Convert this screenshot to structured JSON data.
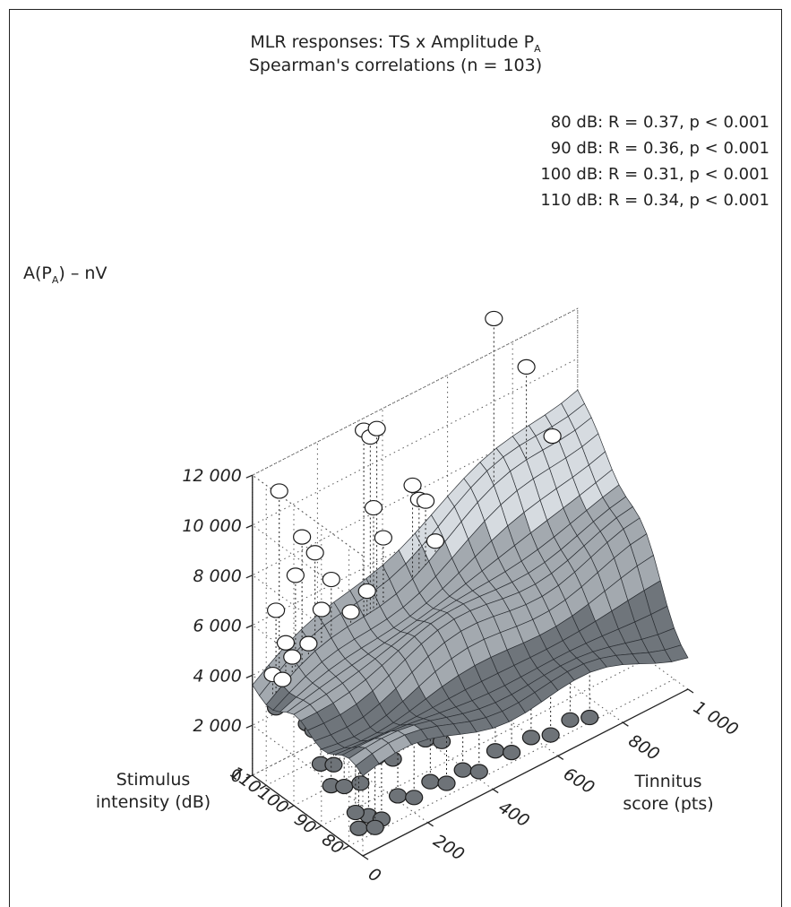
{
  "chart_data": {
    "type": "surface",
    "title": "MLR responses: TS x Amplitude P",
    "title_subscript": "A",
    "subtitle": "Spearman's correlations (n = 103)",
    "annotations": [
      "80 dB: R = 0.37, p < 0.001",
      "90 dB: R = 0.36, p < 0.001",
      "100 dB: R = 0.31, p < 0.001",
      "110 dB: R = 0.34, p < 0.001"
    ],
    "zlabel_main": "A(P",
    "zlabel_sub": "A",
    "zlabel_tail": ") – nV",
    "xlabel_line1": "Tinnitus",
    "xlabel_line2": "score (pts)",
    "ylabel_line1": "Stimulus",
    "ylabel_line2": "intensity (dB)",
    "x_ticks": [
      "0",
      "200",
      "400",
      "600",
      "800",
      "1 000"
    ],
    "x_tick_values": [
      0,
      200,
      400,
      600,
      800,
      1000
    ],
    "y_ticks": [
      "80",
      "90",
      "100",
      "110"
    ],
    "y_tick_values": [
      80,
      90,
      100,
      110
    ],
    "z_ticks": [
      "0",
      "2 000",
      "4 000",
      "6 000",
      "8 000",
      "10 000",
      "12 000"
    ],
    "z_tick_values": [
      0,
      2000,
      4000,
      6000,
      8000,
      10000,
      12000
    ],
    "xlim": [
      0,
      1000
    ],
    "ylim": [
      75,
      115
    ],
    "zlim": [
      0,
      12000
    ],
    "grid": true,
    "surface_corners": {
      "x0_y75": 3200,
      "x1000_y75": 1600,
      "x0_y115": 3500,
      "x1000_y115": 9100
    },
    "points": [
      {
        "x": 40,
        "y": 110,
        "z": 11500
      },
      {
        "x": 30,
        "y": 110,
        "z": 6800
      },
      {
        "x": 60,
        "y": 110,
        "z": 5300
      },
      {
        "x": 110,
        "y": 110,
        "z": 9200
      },
      {
        "x": 90,
        "y": 110,
        "z": 7800
      },
      {
        "x": 150,
        "y": 110,
        "z": 8300
      },
      {
        "x": 170,
        "y": 110,
        "z": 5900
      },
      {
        "x": 20,
        "y": 110,
        "z": 4300
      },
      {
        "x": 50,
        "y": 110,
        "z": 3900
      },
      {
        "x": 80,
        "y": 110,
        "z": 4600
      },
      {
        "x": 130,
        "y": 110,
        "z": 4800
      },
      {
        "x": 200,
        "y": 110,
        "z": 6900
      },
      {
        "x": 60,
        "y": 110,
        "z": 3600
      },
      {
        "x": 30,
        "y": 110,
        "z": 2900
      },
      {
        "x": 220,
        "y": 110,
        "z": 4200
      },
      {
        "x": 120,
        "y": 110,
        "z": 3300
      },
      {
        "x": 40,
        "y": 110,
        "z": 3100
      },
      {
        "x": 70,
        "y": 110,
        "z": 3800
      },
      {
        "x": 300,
        "y": 110,
        "z": 12200
      },
      {
        "x": 320,
        "y": 110,
        "z": 11800
      },
      {
        "x": 340,
        "y": 110,
        "z": 12000
      },
      {
        "x": 330,
        "y": 110,
        "z": 8900
      },
      {
        "x": 360,
        "y": 110,
        "z": 7500
      },
      {
        "x": 310,
        "y": 110,
        "z": 5700
      },
      {
        "x": 260,
        "y": 110,
        "z": 5200
      },
      {
        "x": 280,
        "y": 110,
        "z": 4400
      },
      {
        "x": 450,
        "y": 110,
        "z": 9000
      },
      {
        "x": 470,
        "y": 110,
        "z": 8300
      },
      {
        "x": 490,
        "y": 110,
        "z": 8100
      },
      {
        "x": 520,
        "y": 110,
        "z": 6300
      },
      {
        "x": 560,
        "y": 110,
        "z": 5800
      },
      {
        "x": 600,
        "y": 110,
        "z": 5200
      },
      {
        "x": 700,
        "y": 110,
        "z": 14000
      },
      {
        "x": 800,
        "y": 110,
        "z": 11400
      },
      {
        "x": 880,
        "y": 110,
        "z": 8100
      },
      {
        "x": 40,
        "y": 100,
        "z": 3000
      },
      {
        "x": 60,
        "y": 100,
        "z": 2600
      },
      {
        "x": 90,
        "y": 100,
        "z": 2200
      },
      {
        "x": 120,
        "y": 100,
        "z": 1900
      },
      {
        "x": 160,
        "y": 100,
        "z": 2400
      },
      {
        "x": 200,
        "y": 100,
        "z": 2800
      },
      {
        "x": 240,
        "y": 100,
        "z": 3200
      },
      {
        "x": 280,
        "y": 100,
        "z": 3600
      },
      {
        "x": 320,
        "y": 100,
        "z": 3300
      },
      {
        "x": 360,
        "y": 100,
        "z": 3000
      },
      {
        "x": 400,
        "y": 100,
        "z": 2700
      },
      {
        "x": 450,
        "y": 100,
        "z": 4200
      },
      {
        "x": 500,
        "y": 100,
        "z": 4600
      },
      {
        "x": 530,
        "y": 100,
        "z": 3100
      },
      {
        "x": 580,
        "y": 100,
        "z": 2900
      },
      {
        "x": 620,
        "y": 100,
        "z": 2500
      },
      {
        "x": 700,
        "y": 100,
        "z": 2700
      },
      {
        "x": 760,
        "y": 100,
        "z": 3600
      },
      {
        "x": 850,
        "y": 100,
        "z": 2200
      },
      {
        "x": 900,
        "y": 100,
        "z": 4200
      },
      {
        "x": 40,
        "y": 95,
        "z": 1800
      },
      {
        "x": 80,
        "y": 95,
        "z": 1500
      },
      {
        "x": 130,
        "y": 95,
        "z": 2100
      },
      {
        "x": 180,
        "y": 95,
        "z": 1700
      },
      {
        "x": 230,
        "y": 95,
        "z": 2300
      },
      {
        "x": 290,
        "y": 95,
        "z": 2000
      },
      {
        "x": 340,
        "y": 95,
        "z": 2500
      },
      {
        "x": 390,
        "y": 95,
        "z": 1800
      },
      {
        "x": 440,
        "y": 95,
        "z": 2400
      },
      {
        "x": 490,
        "y": 95,
        "z": 2000
      },
      {
        "x": 540,
        "y": 95,
        "z": 2300
      },
      {
        "x": 600,
        "y": 95,
        "z": 1800
      },
      {
        "x": 660,
        "y": 95,
        "z": 2100
      },
      {
        "x": 720,
        "y": 95,
        "z": 1500
      },
      {
        "x": 30,
        "y": 90,
        "z": 1400
      },
      {
        "x": 70,
        "y": 90,
        "z": 1100
      },
      {
        "x": 120,
        "y": 90,
        "z": 900
      },
      {
        "x": 170,
        "y": 90,
        "z": 1600
      },
      {
        "x": 220,
        "y": 90,
        "z": 1200
      },
      {
        "x": 270,
        "y": 90,
        "z": 1800
      },
      {
        "x": 320,
        "y": 90,
        "z": 1300
      },
      {
        "x": 370,
        "y": 90,
        "z": 900
      },
      {
        "x": 420,
        "y": 90,
        "z": 1500
      },
      {
        "x": 470,
        "y": 90,
        "z": 1100
      },
      {
        "x": 520,
        "y": 90,
        "z": 1300
      },
      {
        "x": 570,
        "y": 90,
        "z": 800
      },
      {
        "x": 620,
        "y": 90,
        "z": 1000
      },
      {
        "x": 30,
        "y": 80,
        "z": 500
      },
      {
        "x": 60,
        "y": 80,
        "z": 800
      },
      {
        "x": 100,
        "y": 80,
        "z": 400
      },
      {
        "x": 150,
        "y": 80,
        "z": 1000
      },
      {
        "x": 200,
        "y": 80,
        "z": 600
      },
      {
        "x": 250,
        "y": 80,
        "z": 900
      },
      {
        "x": 300,
        "y": 80,
        "z": 500
      },
      {
        "x": 350,
        "y": 80,
        "z": 700
      },
      {
        "x": 400,
        "y": 80,
        "z": 300
      },
      {
        "x": 450,
        "y": 80,
        "z": 800
      },
      {
        "x": 500,
        "y": 80,
        "z": 400
      },
      {
        "x": 560,
        "y": 80,
        "z": 600
      },
      {
        "x": 620,
        "y": 80,
        "z": 300
      },
      {
        "x": 680,
        "y": 80,
        "z": 500
      },
      {
        "x": 740,
        "y": 80,
        "z": 200
      },
      {
        "x": 20,
        "y": 80,
        "z": 1200
      },
      {
        "x": 80,
        "y": 80,
        "z": 200
      }
    ]
  },
  "colors": {
    "surface_light": "#d6dbe0",
    "surface_mid": "#a3a9af",
    "surface_dark": "#6f757b",
    "mesh_line": "#2a2e33",
    "point_fill": "#ffffff",
    "point_fill_below": "#6e7378",
    "axis": "#222222"
  }
}
